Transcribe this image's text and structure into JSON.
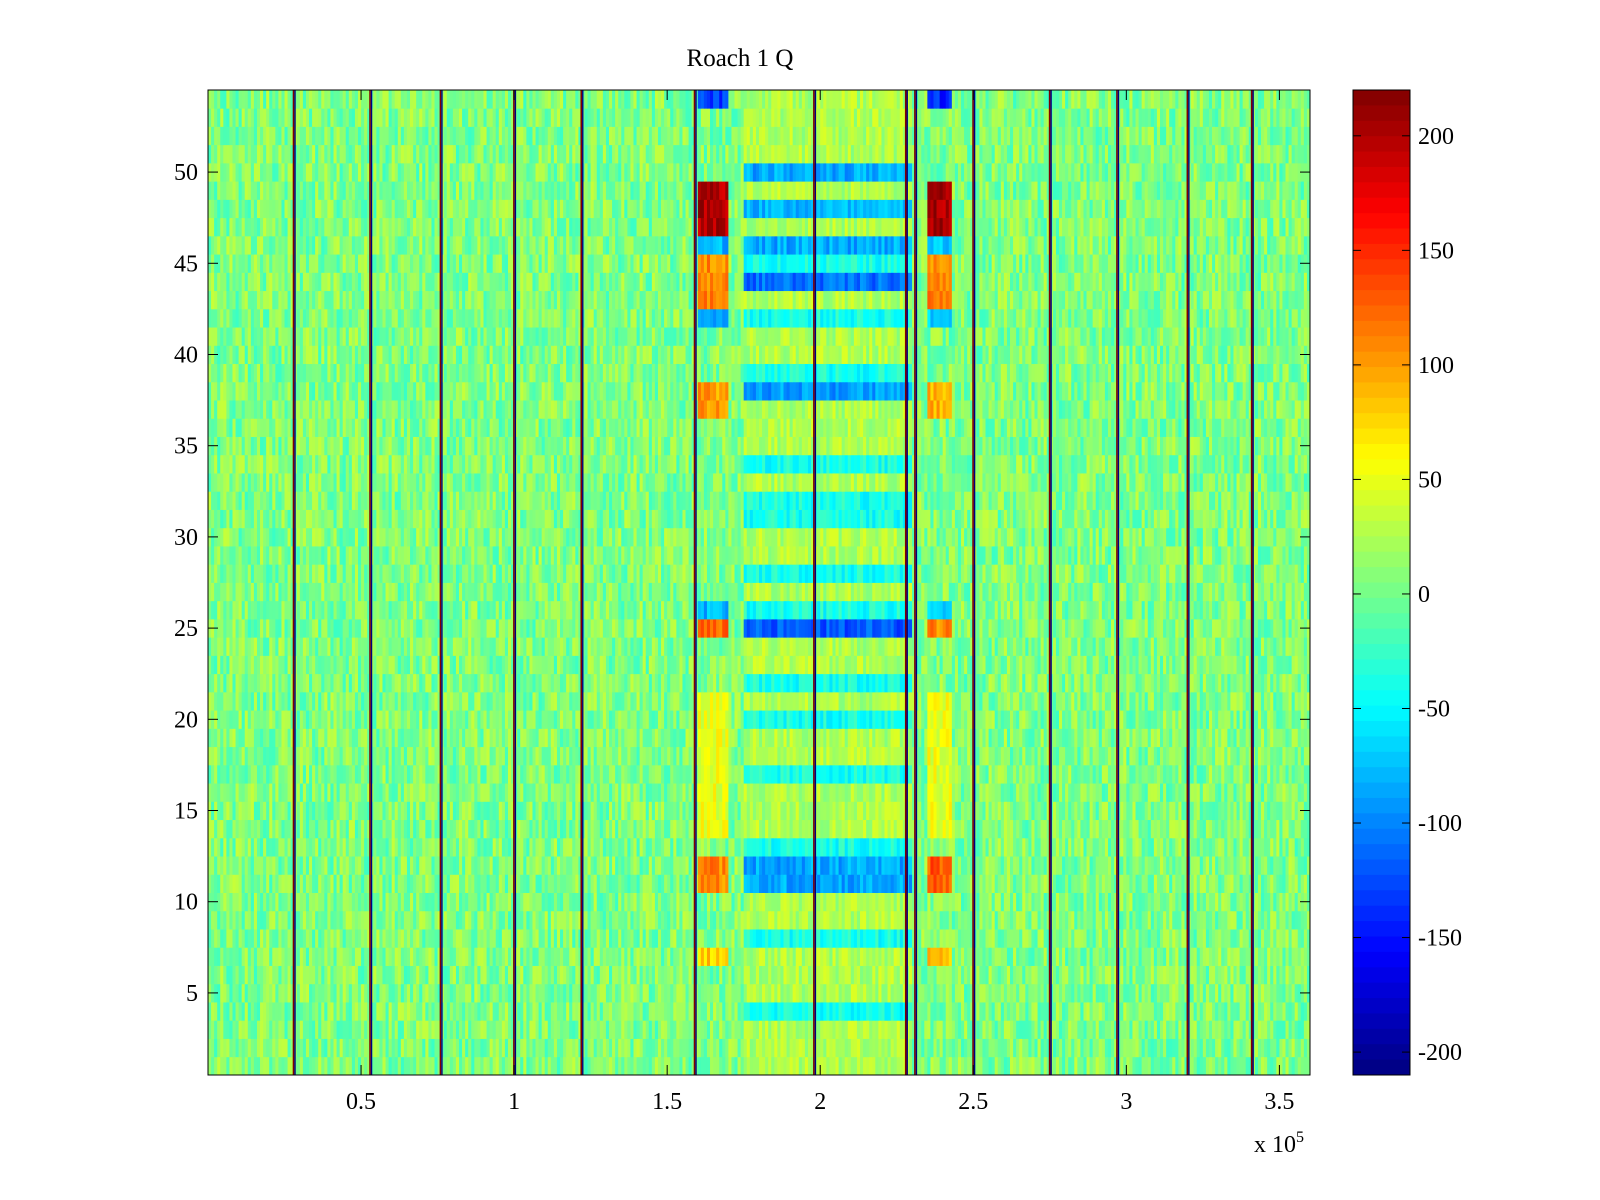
{
  "chart_data": {
    "type": "heatmap",
    "title": "Roach 1 Q",
    "xlabel": "",
    "ylabel": "",
    "x_exponent_label": "x 10",
    "x_exponent_power": "5",
    "xlim": [
      0,
      3.6
    ],
    "ylim": [
      0.5,
      54.5
    ],
    "x_ticks": [
      0.5,
      1,
      1.5,
      2,
      2.5,
      3,
      3.5
    ],
    "x_tick_labels": [
      "0.5",
      "1",
      "1.5",
      "2",
      "2.5",
      "3",
      "3.5"
    ],
    "y_ticks": [
      5,
      10,
      15,
      20,
      25,
      30,
      35,
      40,
      45,
      50
    ],
    "y_tick_labels": [
      "5",
      "10",
      "15",
      "20",
      "25",
      "30",
      "35",
      "40",
      "45",
      "50"
    ],
    "rows": 54,
    "colormap": "jet",
    "clim": [
      -210,
      220
    ],
    "colorbar_ticks": [
      200,
      150,
      100,
      50,
      0,
      -50,
      -100,
      -150,
      -200
    ],
    "colorbar_tick_labels": [
      "200",
      "150",
      "100",
      "50",
      "0",
      "-50",
      "-100",
      "-150",
      "-200"
    ],
    "vertical_stripes_x": [
      0.28,
      0.53,
      0.76,
      1.0,
      1.22,
      1.59,
      1.98,
      2.28,
      2.31,
      2.5,
      2.75,
      2.97,
      3.2,
      3.41
    ],
    "grid": false,
    "background_noise_mean": 5,
    "background_noise_spread": 30,
    "feature_regions": [
      {
        "x_start": 1.6,
        "x_end": 1.7,
        "rows": [
          47,
          48,
          49
        ],
        "value": 200
      },
      {
        "x_start": 2.35,
        "x_end": 2.43,
        "rows": [
          47,
          48,
          49
        ],
        "value": 200
      },
      {
        "x_start": 1.6,
        "x_end": 1.7,
        "rows": [
          43,
          44,
          45
        ],
        "value": 110
      },
      {
        "x_start": 2.35,
        "x_end": 2.43,
        "rows": [
          43,
          44,
          45
        ],
        "value": 110
      },
      {
        "x_start": 1.6,
        "x_end": 1.7,
        "rows": [
          37,
          38
        ],
        "value": 100
      },
      {
        "x_start": 2.35,
        "x_end": 2.43,
        "rows": [
          37,
          38
        ],
        "value": 90
      },
      {
        "x_start": 1.6,
        "x_end": 1.7,
        "rows": [
          25
        ],
        "value": 120
      },
      {
        "x_start": 2.35,
        "x_end": 2.43,
        "rows": [
          25
        ],
        "value": 110
      },
      {
        "x_start": 1.6,
        "x_end": 1.7,
        "rows": [
          11,
          12
        ],
        "value": 110
      },
      {
        "x_start": 2.35,
        "x_end": 2.43,
        "rows": [
          11,
          12
        ],
        "value": 130
      },
      {
        "x_start": 1.6,
        "x_end": 1.7,
        "rows": [
          7
        ],
        "value": 80
      },
      {
        "x_start": 2.35,
        "x_end": 2.43,
        "rows": [
          7
        ],
        "value": 80
      },
      {
        "x_start": 1.6,
        "x_end": 1.7,
        "rows": [
          14,
          15,
          16,
          17,
          18,
          19,
          20,
          21
        ],
        "value": 50
      },
      {
        "x_start": 2.35,
        "x_end": 2.43,
        "rows": [
          14,
          15,
          16,
          17,
          18,
          19,
          20,
          21
        ],
        "value": 50
      },
      {
        "x_start": 1.6,
        "x_end": 1.7,
        "rows": [
          54
        ],
        "value": -130
      },
      {
        "x_start": 2.35,
        "x_end": 2.43,
        "rows": [
          54
        ],
        "value": -140
      },
      {
        "x_start": 1.6,
        "x_end": 1.7,
        "rows": [
          26,
          42,
          46
        ],
        "value": -80
      },
      {
        "x_start": 2.35,
        "x_end": 2.43,
        "rows": [
          26,
          42,
          46
        ],
        "value": -70
      },
      {
        "x_start": 1.75,
        "x_end": 2.3,
        "rows": [
          44
        ],
        "value": -110
      },
      {
        "x_start": 1.75,
        "x_end": 2.3,
        "rows": [
          25
        ],
        "value": -120
      },
      {
        "x_start": 1.75,
        "x_end": 2.3,
        "rows": [
          38
        ],
        "value": -90
      },
      {
        "x_start": 1.75,
        "x_end": 2.3,
        "rows": [
          48
        ],
        "value": -80
      },
      {
        "x_start": 1.75,
        "x_end": 2.3,
        "rows": [
          50,
          46,
          11,
          12
        ],
        "value": -85
      },
      {
        "x_start": 1.75,
        "x_end": 2.3,
        "rows": [
          4,
          8,
          13,
          17,
          20,
          22,
          26,
          28,
          31,
          32,
          34,
          39,
          42,
          45
        ],
        "value": -40
      },
      {
        "x_start": 1.75,
        "x_end": 2.3,
        "rows": [
          1,
          2,
          3,
          5,
          6,
          7,
          9,
          10,
          14,
          15,
          16,
          18,
          19,
          21,
          23,
          24,
          27,
          29,
          30,
          33,
          35,
          36,
          37,
          40,
          41,
          43,
          47,
          49,
          51,
          52,
          53,
          54
        ],
        "value": 25
      }
    ]
  }
}
